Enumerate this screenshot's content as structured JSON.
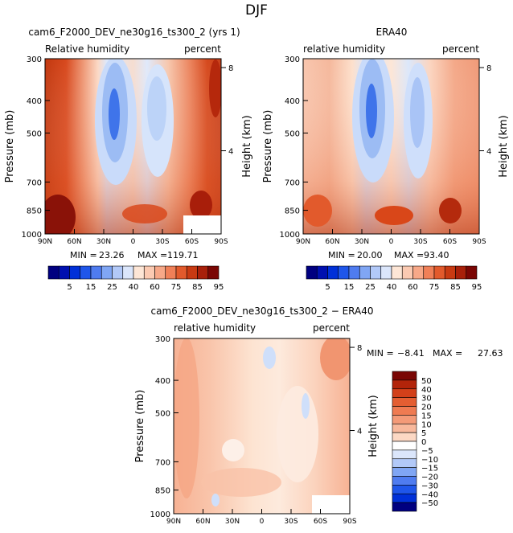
{
  "page": {
    "title": "DJF"
  },
  "palette": {
    "dark_red": "#7f0000",
    "bright_red": "#d03a12",
    "salmon": "#f4a888",
    "cream": "#fde4d2",
    "light_blue": "#d6e4fb",
    "mid_blue": "#8ab0f0",
    "deep_blue": "#2b5fe0",
    "navy": "#00006e"
  },
  "chart_data": [
    {
      "type": "contour",
      "title": "cam6_F2000_DEV_ne30g16_ts300_2 (yrs 1)",
      "left_label": "Relative humidity",
      "right_label": "percent",
      "ylabel": "Pressure (mb)",
      "y2label": "Height (km)",
      "x_ticks": [
        "90N",
        "60N",
        "30N",
        "0",
        "30S",
        "60S",
        "90S"
      ],
      "y_ticks": [
        "300",
        "400",
        "500",
        "700",
        "850",
        "1000"
      ],
      "y2_ticks": [
        "8",
        "4"
      ],
      "stats": {
        "min_label": "MIN =",
        "min": "23.26",
        "max_label": "MAX =",
        "max": "119.71"
      },
      "colorbar": {
        "labels": [
          "5",
          "15",
          "25",
          "40",
          "60",
          "75",
          "85",
          "95"
        ]
      }
    },
    {
      "type": "contour",
      "title": "ERA40",
      "left_label": "relative humidity",
      "right_label": "percent",
      "ylabel": "Pressure (mb)",
      "y2label": "Height (km)",
      "x_ticks": [
        "90N",
        "60N",
        "30N",
        "0",
        "30S",
        "60S",
        "90S"
      ],
      "y_ticks": [
        "300",
        "400",
        "500",
        "700",
        "850",
        "1000"
      ],
      "y2_ticks": [
        "8",
        "4"
      ],
      "stats": {
        "min_label": "MIN =",
        "min": "20.00",
        "max_label": "MAX =",
        "max": "93.40"
      },
      "colorbar": {
        "labels": [
          "5",
          "15",
          "25",
          "40",
          "60",
          "75",
          "85",
          "95"
        ]
      }
    },
    {
      "type": "contour",
      "title": "cam6_F2000_DEV_ne30g16_ts300_2 − ERA40",
      "left_label": "relative humidity",
      "right_label": "percent",
      "ylabel": "Pressure (mb)",
      "y2label": "Height (km)",
      "x_ticks": [
        "90N",
        "60N",
        "30N",
        "0",
        "30S",
        "60S",
        "90S"
      ],
      "y_ticks": [
        "300",
        "400",
        "500",
        "700",
        "850",
        "1000"
      ],
      "y2_ticks": [
        "8",
        "4"
      ],
      "stats": {
        "min_label": "MIN =",
        "min": "−8.41",
        "max_label": "MAX =",
        "max": "27.63"
      },
      "colorbar": {
        "labels": [
          "50",
          "40",
          "30",
          "20",
          "15",
          "10",
          "5",
          "0",
          "−5",
          "−10",
          "−15",
          "−20",
          "−30",
          "−40",
          "−50"
        ]
      }
    }
  ]
}
